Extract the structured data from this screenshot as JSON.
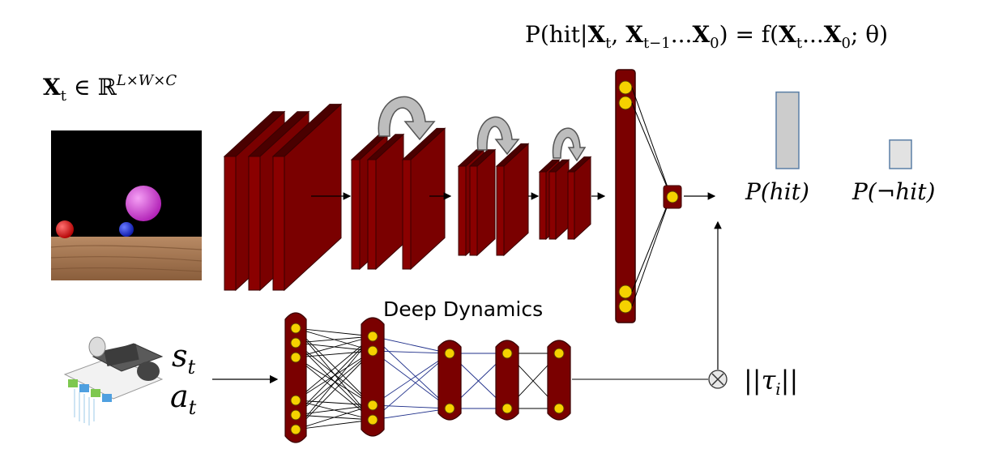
{
  "formula": {
    "lhs": "P(hit|",
    "lhs_X": "X",
    "lhs_t": "t",
    "lhs_comma1": ", ",
    "lhs_X2": "X",
    "lhs_t2": "t−1",
    "lhs_dots": "...",
    "lhs_X3": "X",
    "lhs_0": "0",
    "rhs": ") = f(",
    "rhs_X": "X",
    "rhs_t": "t",
    "rhs_dots": "...",
    "rhs_X2": "X",
    "rhs_0": "0",
    "rhs_tail": "; θ)"
  },
  "input_label": {
    "X": "X",
    "sub": "t",
    "in": " ∈ ℝ",
    "sup": "L×W×C"
  },
  "section_label": "Deep Dynamics",
  "outputs": {
    "hit": "P(hit)",
    "not_hit": "P(¬hit)",
    "hit_prob": 0.78,
    "not_hit_prob": 0.22
  },
  "state_label": {
    "s": "s",
    "s_sub": "t",
    "a": "a",
    "a_sub": "t"
  },
  "norm_label": "||τ",
  "norm_sub": "i",
  "norm_close": "||",
  "colors": {
    "layer": "#7a0000",
    "layer_edge": "#3a0000",
    "node": "#f5d200",
    "bar_fill": "#cccccc",
    "bar_edge": "#5b7fa6",
    "edge_blue": "#1f2f8a",
    "arrow_gray": "#b8b8b8"
  },
  "icons": [
    "robot-car-icon",
    "multiply-circle-icon"
  ]
}
